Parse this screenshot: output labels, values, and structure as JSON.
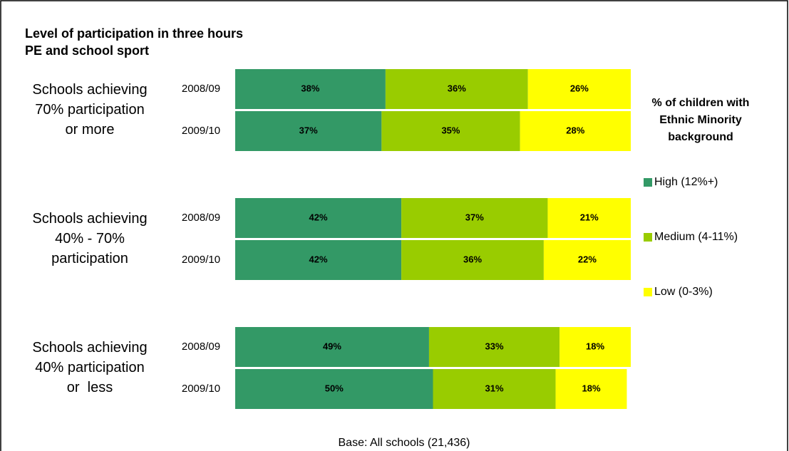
{
  "chart_data": {
    "type": "bar",
    "orientation": "horizontal",
    "stacked": true,
    "title": [
      "Level of participation in three hours",
      "PE and school sport"
    ],
    "groups": [
      {
        "label": [
          "Schools achieving",
          "70% participation",
          "or more"
        ]
      },
      {
        "label": [
          "Schools achieving",
          "40% - 70%",
          "participation"
        ]
      },
      {
        "label": [
          "Schools achieving",
          "40% participation",
          "or  less"
        ]
      }
    ],
    "categories": [
      "2008/09",
      "2009/10",
      "2008/09",
      "2009/10",
      "2008/09",
      "2009/10"
    ],
    "xlim": [
      0,
      100
    ],
    "series": [
      {
        "name": "High (12%+)",
        "color": "#339966",
        "values": [
          38,
          37,
          42,
          42,
          49,
          50
        ],
        "value_labels": [
          "38%",
          "37%",
          "42%",
          "42%",
          "49%",
          "50%"
        ]
      },
      {
        "name": "Medium (4-11%)",
        "color": "#99cc00",
        "values": [
          36,
          35,
          37,
          36,
          33,
          31
        ],
        "value_labels": [
          "36%",
          "35%",
          "37%",
          "36%",
          "33%",
          "31%"
        ]
      },
      {
        "name": "Low (0-3%)",
        "color": "#ffff00",
        "values": [
          26,
          28,
          21,
          22,
          18,
          18
        ],
        "value_labels": [
          "26%",
          "28%",
          "21%",
          "22%",
          "18%",
          "18%"
        ]
      }
    ],
    "legend_title": [
      "% of children with",
      "Ethnic Minority",
      "background"
    ],
    "note": "Base: All schools (21,436)"
  }
}
